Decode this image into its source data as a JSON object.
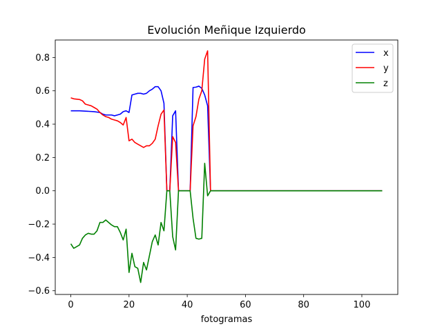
{
  "chart_data": {
    "type": "line",
    "title": "Evolución Meñique Izquierdo",
    "xlabel": "fotogramas",
    "ylabel": "",
    "xlim": [
      -5.35,
      112.35
    ],
    "ylim": [
      -0.622,
      0.905
    ],
    "xticks": [
      0,
      20,
      40,
      60,
      80,
      100
    ],
    "yticks": [
      -0.6,
      -0.4,
      -0.2,
      0.0,
      0.2,
      0.4,
      0.6,
      0.8
    ],
    "xtick_labels": [
      "0",
      "20",
      "40",
      "60",
      "80",
      "100"
    ],
    "ytick_labels": [
      "−0.6",
      "−0.4",
      "−0.2",
      "0.0",
      "0.2",
      "0.4",
      "0.6",
      "0.8"
    ],
    "grid": false,
    "legend_position": "top-right",
    "series": [
      {
        "name": "x",
        "color": "#0000ff",
        "points": [
          [
            0,
            0.48
          ],
          [
            2,
            0.48
          ],
          [
            3,
            0.48
          ],
          [
            5,
            0.478
          ],
          [
            8,
            0.475
          ],
          [
            10,
            0.47
          ],
          [
            11,
            0.46
          ],
          [
            12,
            0.455
          ],
          [
            14,
            0.455
          ],
          [
            15,
            0.45
          ],
          [
            16,
            0.455
          ],
          [
            17,
            0.46
          ],
          [
            18,
            0.475
          ],
          [
            19,
            0.48
          ],
          [
            20,
            0.47
          ],
          [
            21,
            0.575
          ],
          [
            22,
            0.58
          ],
          [
            23,
            0.585
          ],
          [
            24,
            0.585
          ],
          [
            25,
            0.58
          ],
          [
            26,
            0.585
          ],
          [
            27,
            0.6
          ],
          [
            28,
            0.61
          ],
          [
            29,
            0.625
          ],
          [
            30,
            0.625
          ],
          [
            31,
            0.6
          ],
          [
            32,
            0.525
          ],
          [
            33,
            0.0
          ],
          [
            34,
            0.0
          ],
          [
            35,
            0.45
          ],
          [
            36,
            0.48
          ],
          [
            37,
            0.0
          ],
          [
            38,
            0.0
          ],
          [
            39,
            0.0
          ],
          [
            40,
            0.0
          ],
          [
            41,
            0.0
          ],
          [
            42,
            0.62
          ],
          [
            43,
            0.622
          ],
          [
            44,
            0.628
          ],
          [
            45,
            0.615
          ],
          [
            46,
            0.575
          ],
          [
            47,
            0.51
          ],
          [
            48,
            0.0
          ],
          [
            50,
            0.0
          ],
          [
            107,
            0.0
          ]
        ]
      },
      {
        "name": "y",
        "color": "#ff0000",
        "points": [
          [
            0,
            0.558
          ],
          [
            1,
            0.552
          ],
          [
            2,
            0.55
          ],
          [
            3,
            0.548
          ],
          [
            4,
            0.54
          ],
          [
            5,
            0.52
          ],
          [
            6,
            0.515
          ],
          [
            7,
            0.51
          ],
          [
            8,
            0.5
          ],
          [
            9,
            0.49
          ],
          [
            10,
            0.47
          ],
          [
            11,
            0.455
          ],
          [
            12,
            0.445
          ],
          [
            13,
            0.44
          ],
          [
            14,
            0.43
          ],
          [
            15,
            0.425
          ],
          [
            16,
            0.42
          ],
          [
            17,
            0.41
          ],
          [
            18,
            0.395
          ],
          [
            19,
            0.44
          ],
          [
            20,
            0.3
          ],
          [
            21,
            0.31
          ],
          [
            22,
            0.29
          ],
          [
            23,
            0.28
          ],
          [
            24,
            0.27
          ],
          [
            25,
            0.26
          ],
          [
            26,
            0.27
          ],
          [
            27,
            0.27
          ],
          [
            28,
            0.285
          ],
          [
            29,
            0.31
          ],
          [
            30,
            0.39
          ],
          [
            31,
            0.46
          ],
          [
            32,
            0.485
          ],
          [
            33,
            0.0
          ],
          [
            34,
            0.0
          ],
          [
            35,
            0.325
          ],
          [
            36,
            0.29
          ],
          [
            37,
            0.0
          ],
          [
            38,
            0.0
          ],
          [
            39,
            0.0
          ],
          [
            40,
            0.0
          ],
          [
            41,
            0.0
          ],
          [
            42,
            0.39
          ],
          [
            43,
            0.445
          ],
          [
            44,
            0.55
          ],
          [
            45,
            0.6
          ],
          [
            46,
            0.79
          ],
          [
            47,
            0.84
          ],
          [
            48,
            0.0
          ],
          [
            50,
            0.0
          ],
          [
            107,
            0.0
          ]
        ]
      },
      {
        "name": "z",
        "color": "#008000",
        "points": [
          [
            0,
            -0.318
          ],
          [
            1,
            -0.345
          ],
          [
            2,
            -0.335
          ],
          [
            3,
            -0.325
          ],
          [
            4,
            -0.285
          ],
          [
            5,
            -0.265
          ],
          [
            6,
            -0.255
          ],
          [
            7,
            -0.26
          ],
          [
            8,
            -0.26
          ],
          [
            9,
            -0.24
          ],
          [
            10,
            -0.19
          ],
          [
            11,
            -0.19
          ],
          [
            12,
            -0.175
          ],
          [
            13,
            -0.19
          ],
          [
            14,
            -0.205
          ],
          [
            15,
            -0.215
          ],
          [
            16,
            -0.215
          ],
          [
            17,
            -0.25
          ],
          [
            18,
            -0.295
          ],
          [
            19,
            -0.23
          ],
          [
            20,
            -0.49
          ],
          [
            21,
            -0.375
          ],
          [
            22,
            -0.455
          ],
          [
            23,
            -0.465
          ],
          [
            24,
            -0.55
          ],
          [
            25,
            -0.43
          ],
          [
            26,
            -0.475
          ],
          [
            27,
            -0.39
          ],
          [
            28,
            -0.305
          ],
          [
            29,
            -0.265
          ],
          [
            30,
            -0.325
          ],
          [
            31,
            -0.19
          ],
          [
            32,
            -0.24
          ],
          [
            33,
            0.0
          ],
          [
            34,
            0.0
          ],
          [
            35,
            -0.275
          ],
          [
            36,
            -0.355
          ],
          [
            37,
            0.0
          ],
          [
            38,
            0.0
          ],
          [
            39,
            0.0
          ],
          [
            40,
            0.0
          ],
          [
            41,
            0.0
          ],
          [
            42,
            -0.165
          ],
          [
            43,
            -0.285
          ],
          [
            44,
            -0.29
          ],
          [
            45,
            -0.285
          ],
          [
            46,
            0.165
          ],
          [
            47,
            -0.03
          ],
          [
            48,
            0.0
          ],
          [
            50,
            0.0
          ],
          [
            107,
            0.0
          ]
        ]
      }
    ]
  }
}
